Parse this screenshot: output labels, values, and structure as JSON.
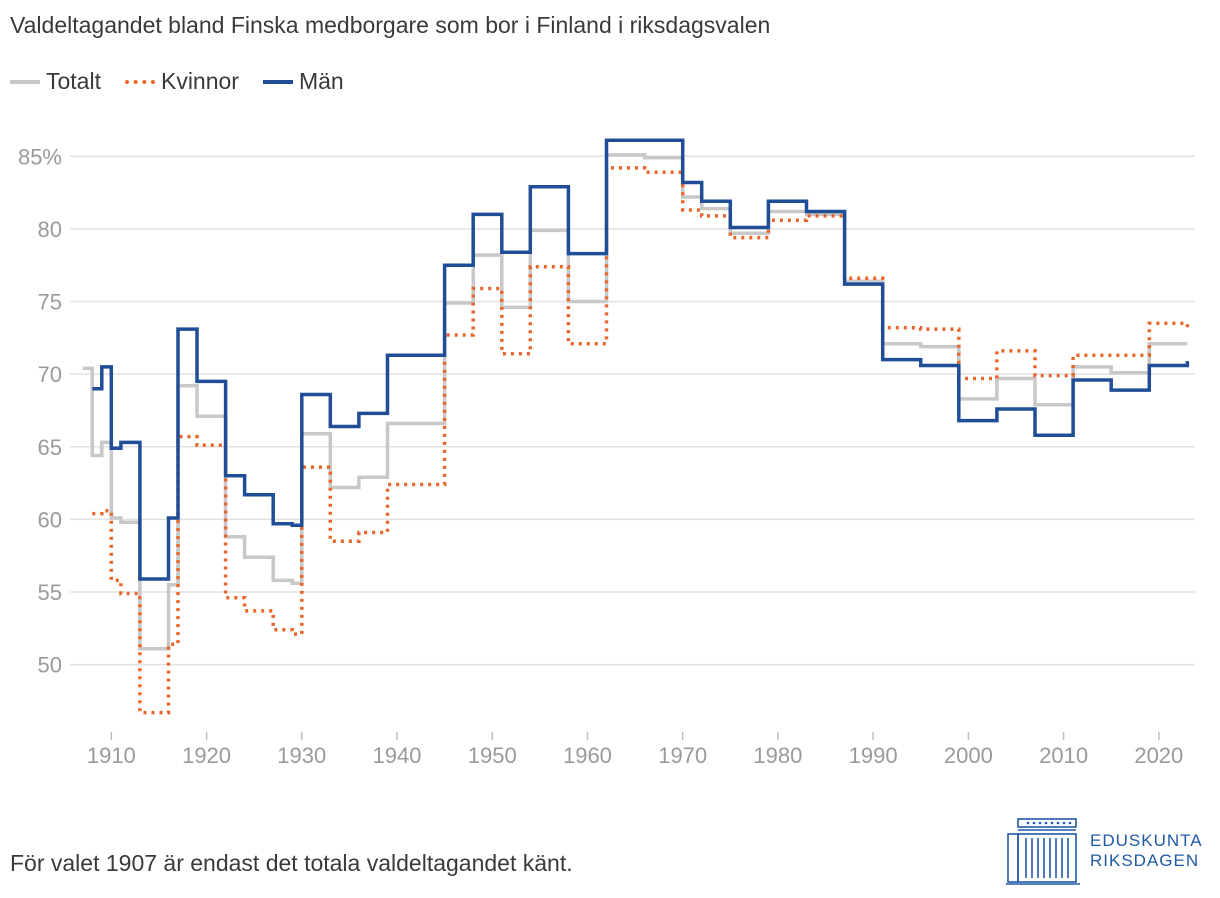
{
  "title": "Valdeltagandet bland Finska medborgare som bor i Finland i riksdagsvalen",
  "footnote": "För valet 1907 är endast det totala valdeltagandet känt.",
  "logo": {
    "line1": "EDUSKUNTA",
    "line2": "RIKSDAGEN"
  },
  "colors": {
    "total": "#c8c8c8",
    "women": "#e8662a",
    "men": "#1f4e96",
    "grid": "#e2e2e2",
    "tick": "#9a9a9a"
  },
  "chart_data": {
    "type": "line",
    "step": true,
    "title": "Valdeltagandet bland Finska medborgare som bor i Finland i riksdagsvalen",
    "xlabel": "",
    "ylabel": "",
    "xlim": [
      1906.5,
      2023.8
    ],
    "ylim": [
      45.5,
      87.5
    ],
    "yticks": [
      50,
      55,
      60,
      65,
      70,
      75,
      80,
      85
    ],
    "ytick_labels": [
      "50",
      "55",
      "60",
      "65",
      "70",
      "75",
      "80",
      "85%"
    ],
    "xticks": [
      1910,
      1920,
      1930,
      1940,
      1950,
      1960,
      1970,
      1980,
      1990,
      2000,
      2010,
      2020
    ],
    "xtick_labels": [
      "1910",
      "1920",
      "1930",
      "1940",
      "1950",
      "1960",
      "1970",
      "1980",
      "1990",
      "2000",
      "2010",
      "2020"
    ],
    "end_year": 2023,
    "series": [
      {
        "name": "Totalt",
        "style": "solid",
        "x": [
          1907,
          1908,
          1909,
          1910,
          1911,
          1913,
          1916,
          1917,
          1919,
          1922,
          1924,
          1927,
          1929,
          1930,
          1933,
          1936,
          1939,
          1945,
          1948,
          1951,
          1954,
          1958,
          1962,
          1966,
          1970,
          1972,
          1975,
          1979,
          1983,
          1987,
          1991,
          1995,
          1999,
          2003,
          2007,
          2011,
          2015,
          2019
        ],
        "values": [
          70.4,
          64.4,
          65.3,
          60.1,
          59.8,
          51.1,
          55.5,
          69.2,
          67.1,
          58.8,
          57.4,
          55.8,
          55.6,
          65.9,
          62.2,
          62.9,
          66.6,
          74.9,
          78.2,
          74.6,
          79.9,
          75.0,
          85.1,
          84.9,
          82.2,
          81.4,
          79.7,
          81.2,
          81.0,
          76.4,
          72.1,
          71.9,
          68.3,
          69.7,
          67.9,
          70.5,
          70.1,
          72.1
        ]
      },
      {
        "name": "Kvinnor",
        "style": "dotted",
        "x": [
          1908,
          1909,
          1910,
          1911,
          1913,
          1916,
          1917,
          1919,
          1922,
          1924,
          1927,
          1929,
          1930,
          1933,
          1936,
          1939,
          1945,
          1948,
          1951,
          1954,
          1958,
          1962,
          1966,
          1970,
          1972,
          1975,
          1979,
          1983,
          1987,
          1991,
          1995,
          1999,
          2003,
          2007,
          2011,
          2015,
          2019,
          2023
        ],
        "values": [
          60.4,
          60.6,
          55.8,
          54.9,
          46.7,
          51.4,
          65.7,
          65.1,
          54.6,
          53.7,
          52.4,
          52.1,
          63.6,
          58.5,
          59.1,
          62.4,
          72.7,
          75.9,
          71.4,
          77.4,
          72.1,
          84.2,
          83.9,
          81.3,
          80.9,
          79.4,
          80.6,
          80.9,
          76.6,
          73.2,
          73.1,
          69.7,
          71.6,
          69.9,
          71.3,
          71.3,
          73.5,
          72.9
        ]
      },
      {
        "name": "Män",
        "style": "solid",
        "x": [
          1908,
          1909,
          1910,
          1911,
          1913,
          1916,
          1917,
          1919,
          1922,
          1924,
          1927,
          1929,
          1930,
          1933,
          1936,
          1939,
          1945,
          1948,
          1951,
          1954,
          1958,
          1962,
          1966,
          1970,
          1972,
          1975,
          1979,
          1983,
          1987,
          1991,
          1995,
          1999,
          2003,
          2007,
          2011,
          2015,
          2019,
          2023
        ],
        "values": [
          69.0,
          70.5,
          64.9,
          65.3,
          55.9,
          60.1,
          73.1,
          69.5,
          63.0,
          61.7,
          59.7,
          59.6,
          68.6,
          66.4,
          67.3,
          71.3,
          77.5,
          81.0,
          78.4,
          82.9,
          78.3,
          86.1,
          86.1,
          83.2,
          81.9,
          80.1,
          81.9,
          81.2,
          76.2,
          71.0,
          70.6,
          66.8,
          67.6,
          65.8,
          69.6,
          68.9,
          70.6,
          70.9
        ]
      }
    ]
  }
}
